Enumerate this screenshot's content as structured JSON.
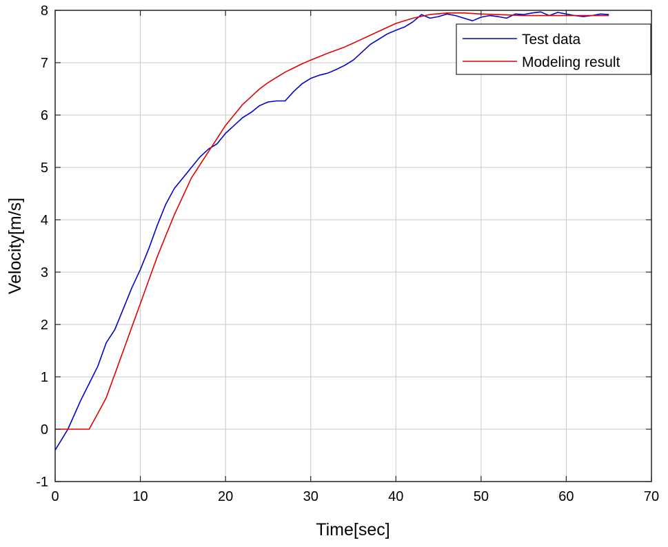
{
  "chart_data": {
    "type": "line",
    "title": "",
    "xlabel": "Time[sec]",
    "ylabel": "Velocity[m/s]",
    "xlim": [
      0,
      70
    ],
    "ylim": [
      -1,
      8
    ],
    "xticks": [
      0,
      10,
      20,
      30,
      40,
      50,
      60,
      70
    ],
    "yticks": [
      -1,
      0,
      1,
      2,
      3,
      4,
      5,
      6,
      7,
      8
    ],
    "grid": true,
    "legend_position": "top-right",
    "series": [
      {
        "name": "Test data",
        "color": "#0000cc",
        "x": [
          0,
          1.5,
          3,
          5,
          6,
          7,
          8,
          9,
          10,
          11,
          12,
          13,
          14,
          15,
          16,
          17,
          18,
          19,
          20,
          21,
          22,
          23,
          24,
          25,
          26,
          27,
          28,
          29,
          30,
          31,
          32,
          33,
          34,
          35,
          36,
          37,
          38,
          39,
          40,
          41,
          42,
          43,
          44,
          45,
          46,
          47,
          48,
          49,
          50,
          51,
          52,
          53,
          54,
          55,
          56,
          57,
          58,
          59,
          60,
          61,
          62,
          63,
          64,
          65
        ],
        "y": [
          -0.4,
          0,
          0.55,
          1.2,
          1.65,
          1.9,
          2.3,
          2.7,
          3.05,
          3.45,
          3.9,
          4.3,
          4.6,
          4.8,
          5.0,
          5.2,
          5.35,
          5.45,
          5.65,
          5.8,
          5.95,
          6.05,
          6.18,
          6.25,
          6.27,
          6.27,
          6.45,
          6.6,
          6.7,
          6.76,
          6.8,
          6.87,
          6.95,
          7.05,
          7.2,
          7.35,
          7.45,
          7.55,
          7.62,
          7.68,
          7.78,
          7.92,
          7.85,
          7.88,
          7.93,
          7.9,
          7.85,
          7.8,
          7.87,
          7.9,
          7.88,
          7.85,
          7.93,
          7.92,
          7.95,
          7.97,
          7.9,
          7.96,
          7.93,
          7.9,
          7.88,
          7.9,
          7.93,
          7.92
        ]
      },
      {
        "name": "Modeling result",
        "color": "#e00000",
        "x": [
          0,
          4,
          5,
          6,
          7,
          8,
          9,
          10,
          11,
          12,
          13,
          14,
          15,
          16,
          17,
          18,
          19,
          20,
          21,
          22,
          23,
          24,
          25,
          26,
          27,
          28,
          29,
          30,
          32,
          34,
          36,
          38,
          40,
          42,
          44,
          46,
          48,
          50,
          55,
          60,
          65
        ],
        "y": [
          0,
          0,
          0.3,
          0.6,
          1.05,
          1.5,
          1.95,
          2.4,
          2.85,
          3.3,
          3.7,
          4.1,
          4.45,
          4.8,
          5.05,
          5.3,
          5.55,
          5.8,
          6.0,
          6.2,
          6.35,
          6.5,
          6.62,
          6.72,
          6.82,
          6.9,
          6.98,
          7.05,
          7.18,
          7.3,
          7.45,
          7.6,
          7.75,
          7.85,
          7.92,
          7.95,
          7.95,
          7.93,
          7.9,
          7.9,
          7.9
        ]
      }
    ]
  }
}
